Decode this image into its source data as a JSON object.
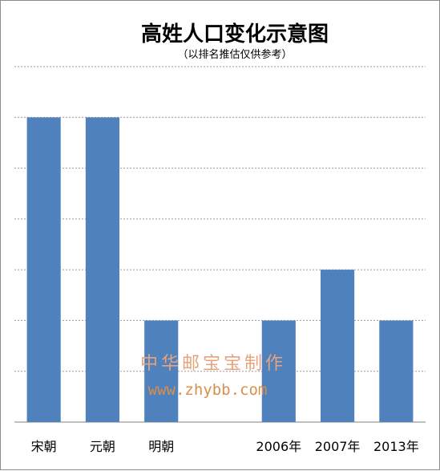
{
  "chart_data": {
    "type": "bar",
    "title": "高姓人口变化示意图",
    "subtitle": "（以排名推估仅供参考）",
    "categories": [
      "宋朝",
      "元朝",
      "明朝",
      "",
      "2006年",
      "2007年",
      "2013年"
    ],
    "values": [
      6,
      6,
      2,
      null,
      2,
      3,
      2
    ],
    "ylim": [
      0,
      7
    ],
    "grid": true,
    "gridline_style": "dashed",
    "xlabel": "",
    "ylabel": "",
    "bar_color": "#4f81bd"
  },
  "watermark": {
    "line1": "中华邮宝宝制作",
    "line2": "www.zhybb.com"
  }
}
